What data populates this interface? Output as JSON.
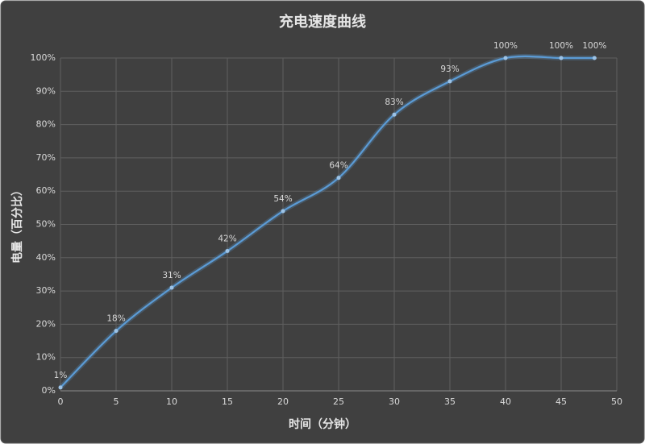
{
  "chart_data": {
    "type": "line",
    "title": "充电速度曲线",
    "x_label": "时间（分钟）",
    "y_label": "电量（百分比）",
    "x": [
      0,
      5,
      10,
      15,
      20,
      25,
      30,
      35,
      40,
      45,
      48
    ],
    "series": [
      {
        "name": "电量",
        "color": "#5b9bd5",
        "values": [
          1,
          18,
          31,
          42,
          54,
          64,
          83,
          93,
          100,
          100,
          100
        ],
        "value_labels": [
          "1%",
          "18%",
          "31%",
          "42%",
          "54%",
          "64%",
          "83%",
          "93%",
          "100%",
          "100%",
          "100%"
        ]
      }
    ],
    "xlim": [
      0,
      50
    ],
    "xticks": [
      0,
      5,
      10,
      15,
      20,
      25,
      30,
      35,
      40,
      45,
      50
    ],
    "ylim": [
      0,
      100
    ],
    "yticks": [
      {
        "value": 0,
        "label": "0%"
      },
      {
        "value": 10,
        "label": "10%"
      },
      {
        "value": 20,
        "label": "20%"
      },
      {
        "value": 30,
        "label": "30%"
      },
      {
        "value": 40,
        "label": "40%"
      },
      {
        "value": 50,
        "label": "50%"
      },
      {
        "value": 60,
        "label": "60%"
      },
      {
        "value": 70,
        "label": "70%"
      },
      {
        "value": 80,
        "label": "80%"
      },
      {
        "value": 90,
        "label": "90%"
      },
      {
        "value": 100,
        "label": "100%"
      }
    ],
    "grid": true,
    "smooth": true
  }
}
